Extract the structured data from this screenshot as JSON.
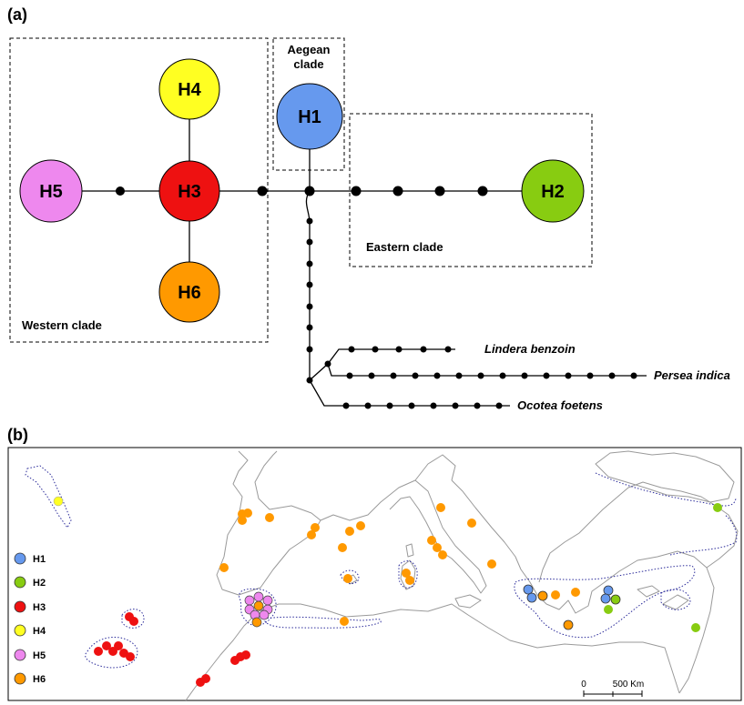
{
  "panels": {
    "a_label": "(a)",
    "b_label": "(b)"
  },
  "clades": {
    "western": "Western clade",
    "aegean_line1": "Aegean",
    "aegean_line2": "clade",
    "eastern": "Eastern clade"
  },
  "haplotypes": [
    {
      "id": "H1",
      "label": "H1",
      "color": "#6699ee"
    },
    {
      "id": "H2",
      "label": "H2",
      "color": "#88cc11"
    },
    {
      "id": "H3",
      "label": "H3",
      "color": "#ee1111"
    },
    {
      "id": "H4",
      "label": "H4",
      "color": "#ffff22"
    },
    {
      "id": "H5",
      "label": "H5",
      "color": "#ee88ee"
    },
    {
      "id": "H6",
      "label": "H6",
      "color": "#ff9900"
    }
  ],
  "outgroups": [
    {
      "name": "Lindera benzoin"
    },
    {
      "name": "Persea indica"
    },
    {
      "name": "Ocotea foetens"
    }
  ],
  "legend": [
    {
      "label": "H1",
      "color": "#6699ee"
    },
    {
      "label": "H2",
      "color": "#88cc11"
    },
    {
      "label": "H3",
      "color": "#ee1111"
    },
    {
      "label": "H4",
      "color": "#ffff22"
    },
    {
      "label": "H5",
      "color": "#ee88ee"
    },
    {
      "label": "H6",
      "color": "#ff9900"
    }
  ],
  "scale_bar": {
    "start_label": "0",
    "end_label": "500 Km"
  }
}
